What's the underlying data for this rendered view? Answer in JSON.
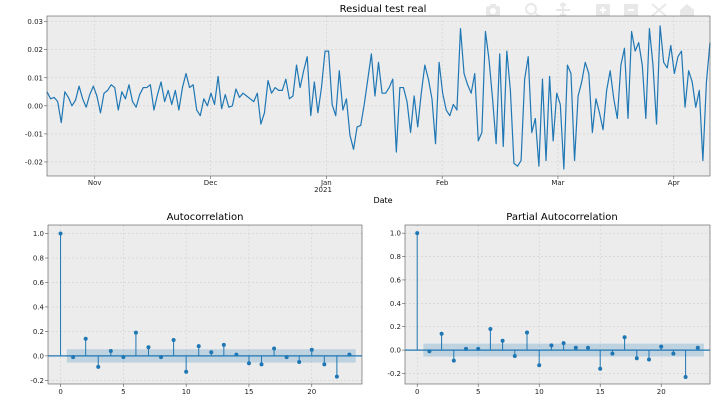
{
  "toolbar": {
    "icons": [
      "camera-icon",
      "zoom-icon",
      "pan-icon",
      "zoom-in-box-icon",
      "zoom-out-box-icon",
      "autoscale-icon",
      "home-icon"
    ]
  },
  "chart_data": [
    {
      "type": "line",
      "title": "Residual test real",
      "xlabel": "Date",
      "ylabel": "",
      "ylim": [
        -0.025,
        0.032
      ],
      "yticks": [
        "0.03",
        "0.02",
        "0.01",
        "0.00",
        "-0.01",
        "-0.02"
      ],
      "xticks": [
        "Nov",
        "Dec",
        "Jan",
        "Feb",
        "Mar",
        "Apr"
      ],
      "xtick_sub": "2021",
      "grid": true,
      "series": [
        {
          "color": "#1f77b4",
          "values": [
            0.005,
            0.0025,
            0.003,
            0.0015,
            -0.006,
            0.005,
            0.003,
            0.0,
            0.002,
            0.007,
            0.0025,
            -0.0005,
            0.004,
            0.007,
            0.0035,
            -0.0025,
            0.0045,
            0.0055,
            0.0075,
            0.0065,
            -0.0015,
            0.005,
            0.0025,
            0.0075,
            0.0015,
            -0.0005,
            0.004,
            0.0065,
            0.0065,
            0.0075,
            -0.0015,
            0.004,
            0.0085,
            0.0015,
            0.0055,
            0.0005,
            0.0055,
            -0.0015,
            0.0065,
            0.0115,
            0.0065,
            0.0075,
            -0.0015,
            -0.0035,
            0.0025,
            0.0,
            0.0045,
            0.0005,
            0.0105,
            -0.001,
            0.004,
            -0.0005,
            0.0,
            0.006,
            0.003,
            0.0045,
            0.0035,
            0.0025,
            0.0015,
            0.0045,
            -0.0065,
            -0.0025,
            0.009,
            0.0045,
            0.0065,
            0.0055,
            0.0055,
            0.0095,
            0.0025,
            0.0035,
            0.0145,
            0.0065,
            0.0125,
            0.0175,
            -0.0035,
            0.0085,
            -0.0025,
            0.0065,
            0.0195,
            0.0195,
            0.0005,
            -0.0035,
            0.0125,
            -0.0015,
            0.0025,
            -0.0105,
            -0.0155,
            -0.0075,
            -0.007,
            0.0005,
            0.0095,
            0.0185,
            0.0035,
            0.0155,
            0.0045,
            0.0045,
            0.0065,
            0.0095,
            -0.0165,
            0.0065,
            0.0065,
            0.0015,
            -0.0095,
            0.0035,
            -0.0075,
            0.0045,
            0.0145,
            0.0095,
            0.0025,
            -0.0135,
            0.0155,
            0.0045,
            -0.0015,
            -0.0035,
            0.0005,
            -0.0015,
            0.0275,
            0.0115,
            0.0075,
            0.0045,
            0.0115,
            -0.0125,
            -0.0095,
            0.0265,
            0.0165,
            0.0025,
            -0.0135,
            0.0185,
            -0.0145,
            0.0195,
            0.0055,
            -0.0205,
            -0.0215,
            -0.0195,
            0.0095,
            0.0175,
            -0.0095,
            -0.0045,
            -0.0215,
            0.0095,
            -0.0195,
            0.0105,
            -0.0125,
            0.0045,
            0.0005,
            -0.0225,
            0.0145,
            0.0115,
            -0.0195,
            0.0035,
            0.0085,
            0.0155,
            0.0115,
            -0.0095,
            0.0025,
            -0.0025,
            -0.0085,
            0.0055,
            0.0125,
            0.0025,
            -0.0045,
            0.0145,
            0.0205,
            -0.0045,
            0.0265,
            0.0195,
            0.0225,
            0.0145,
            -0.0045,
            0.0275,
            0.0145,
            -0.0065,
            0.0285,
            0.0155,
            0.0135,
            0.0215,
            0.0115,
            0.0175,
            0.0195,
            -0.0005,
            0.0125,
            0.0085,
            -0.0005,
            0.0055,
            -0.0195,
            0.0085,
            0.0225
          ]
        }
      ]
    },
    {
      "type": "stem",
      "title": "Autocorrelation",
      "xlim": [
        -1,
        24
      ],
      "ylim": [
        -0.23,
        1.07
      ],
      "xticks": [
        "0",
        "5",
        "10",
        "15",
        "20"
      ],
      "yticks": [
        "1.0",
        "0.8",
        "0.6",
        "0.4",
        "0.2",
        "0.0",
        "-0.2"
      ],
      "confidence_band": 0.055,
      "lags": [
        0,
        1,
        2,
        3,
        4,
        5,
        6,
        7,
        8,
        9,
        10,
        11,
        12,
        13,
        14,
        15,
        16,
        17,
        18,
        19,
        20,
        21,
        22,
        23
      ],
      "values": [
        1.0,
        -0.01,
        0.14,
        -0.09,
        0.04,
        -0.01,
        0.19,
        0.07,
        -0.01,
        0.13,
        -0.13,
        0.08,
        0.03,
        0.09,
        0.01,
        -0.06,
        -0.07,
        0.06,
        -0.01,
        -0.05,
        0.05,
        -0.07,
        -0.17,
        0.01
      ]
    },
    {
      "type": "stem",
      "title": "Partial Autocorrelation",
      "xlim": [
        -1,
        24
      ],
      "ylim": [
        -0.29,
        1.07
      ],
      "xticks": [
        "0",
        "5",
        "10",
        "15",
        "20"
      ],
      "yticks": [
        "1.0",
        "0.8",
        "0.6",
        "0.4",
        "0.2",
        "0.0",
        "-0.2"
      ],
      "confidence_band": 0.055,
      "lags": [
        0,
        1,
        2,
        3,
        4,
        5,
        6,
        7,
        8,
        9,
        10,
        11,
        12,
        13,
        14,
        15,
        16,
        17,
        18,
        19,
        20,
        21,
        22,
        23
      ],
      "values": [
        1.0,
        -0.01,
        0.14,
        -0.09,
        0.01,
        0.01,
        0.18,
        0.08,
        -0.05,
        0.15,
        -0.13,
        0.04,
        0.06,
        0.02,
        0.02,
        -0.16,
        -0.03,
        0.11,
        -0.07,
        -0.08,
        0.03,
        -0.03,
        -0.23,
        0.02
      ]
    }
  ]
}
